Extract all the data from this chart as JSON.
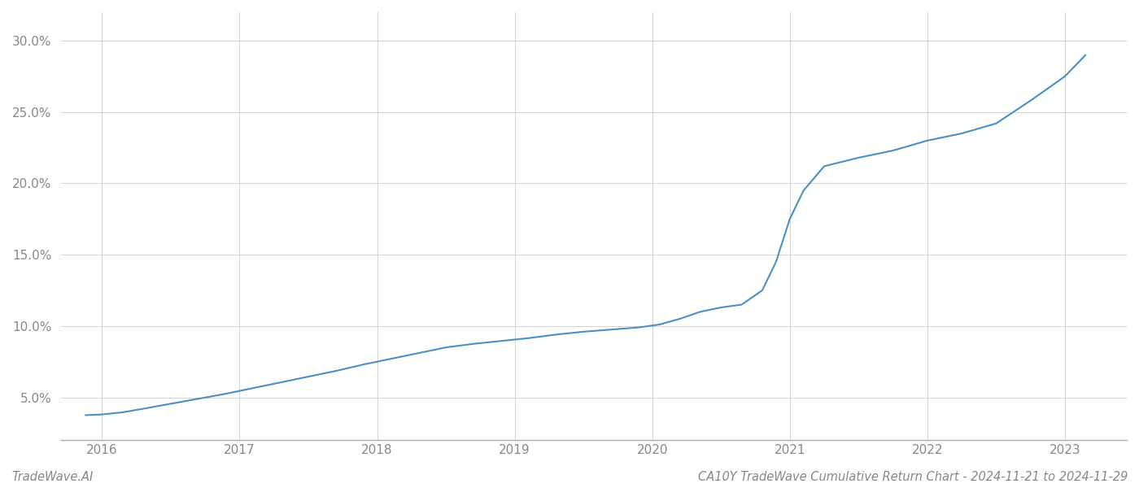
{
  "x_values": [
    2015.88,
    2016.0,
    2016.15,
    2016.3,
    2016.5,
    2016.7,
    2016.9,
    2017.1,
    2017.3,
    2017.5,
    2017.7,
    2017.9,
    2018.1,
    2018.3,
    2018.5,
    2018.7,
    2018.9,
    2019.1,
    2019.3,
    2019.5,
    2019.7,
    2019.9,
    2020.05,
    2020.2,
    2020.35,
    2020.5,
    2020.65,
    2020.8,
    2020.9,
    2021.0,
    2021.1,
    2021.25,
    2021.5,
    2021.75,
    2022.0,
    2022.25,
    2022.5,
    2022.75,
    2023.0,
    2023.15
  ],
  "y_values": [
    3.75,
    3.8,
    3.95,
    4.2,
    4.55,
    4.9,
    5.25,
    5.65,
    6.05,
    6.45,
    6.85,
    7.3,
    7.7,
    8.1,
    8.5,
    8.75,
    8.95,
    9.15,
    9.4,
    9.6,
    9.75,
    9.9,
    10.1,
    10.5,
    11.0,
    11.3,
    11.5,
    12.5,
    14.5,
    17.5,
    19.5,
    21.2,
    21.8,
    22.3,
    23.0,
    23.5,
    24.2,
    25.8,
    27.5,
    29.0
  ],
  "line_color": "#4a90c4",
  "line_width": 1.5,
  "background_color": "#ffffff",
  "grid_color": "#cccccc",
  "grid_linestyle": "-",
  "xtick_labels": [
    "2016",
    "2017",
    "2018",
    "2019",
    "2020",
    "2021",
    "2022",
    "2023"
  ],
  "xtick_positions": [
    2016,
    2017,
    2018,
    2019,
    2020,
    2021,
    2022,
    2023
  ],
  "ytick_values": [
    5.0,
    10.0,
    15.0,
    20.0,
    25.0,
    30.0
  ],
  "ylim_min": 2.0,
  "ylim_max": 32.0,
  "xlim_min": 2015.7,
  "xlim_max": 2023.45,
  "footer_left": "TradeWave.AI",
  "footer_right": "CA10Y TradeWave Cumulative Return Chart - 2024-11-21 to 2024-11-29",
  "footer_fontsize": 10.5,
  "tick_label_color": "#888888",
  "tick_fontsize": 11,
  "spine_color": "#aaaaaa"
}
